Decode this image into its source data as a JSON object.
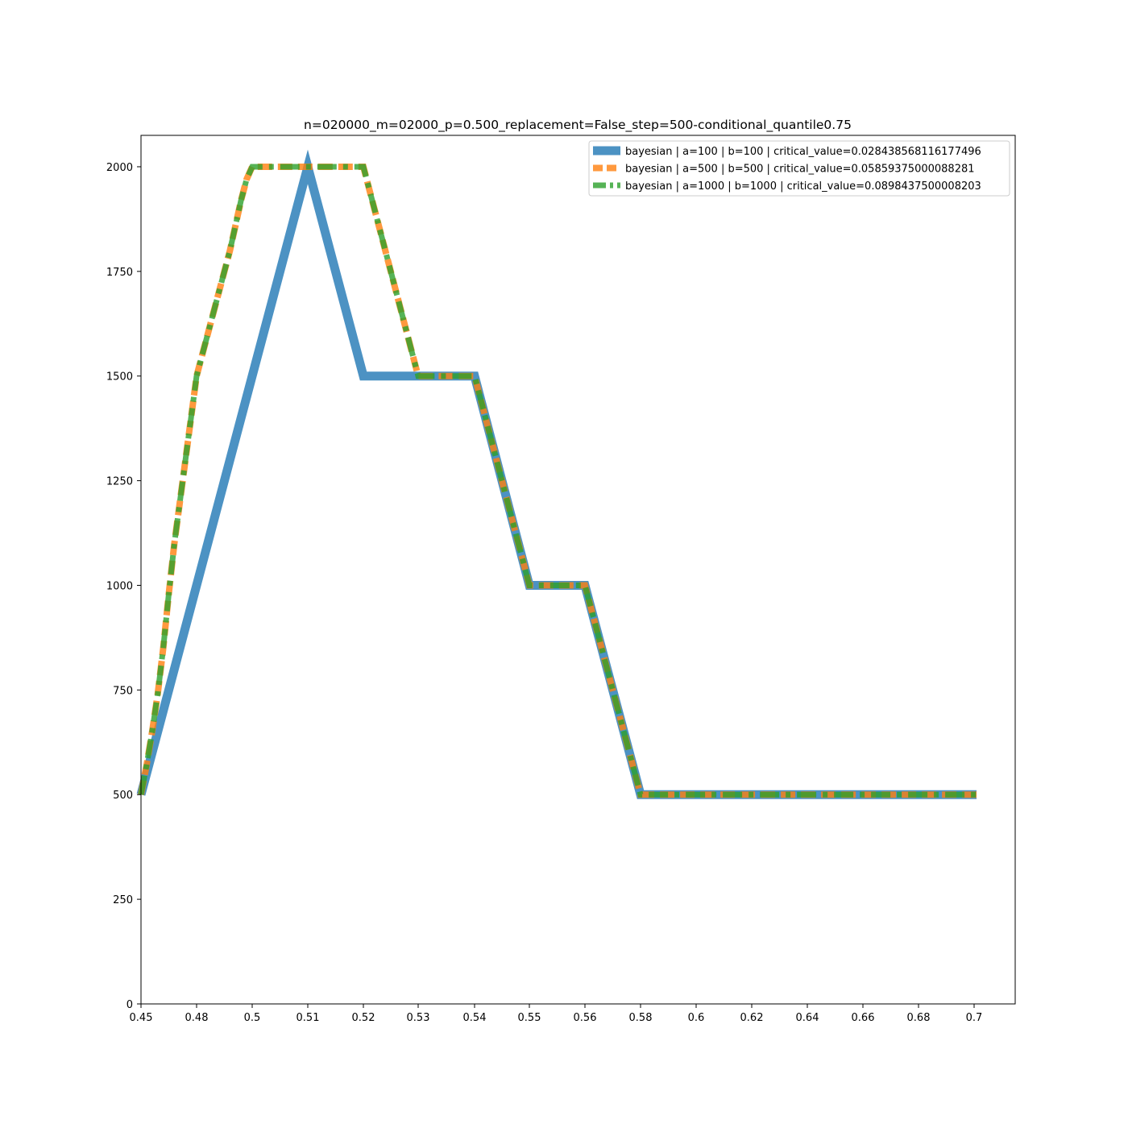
{
  "chart_data": {
    "type": "line",
    "title": "n=020000_m=02000_p=0.500_replacement=False_step=500-conditional_quantile0.75",
    "xlabel": "",
    "ylabel": "",
    "x_tick_labels": [
      "0.45",
      "0.48",
      "0.5",
      "0.51",
      "0.52",
      "0.53",
      "0.54",
      "0.55",
      "0.56",
      "0.58",
      "0.6",
      "0.62",
      "0.64",
      "0.66",
      "0.68",
      "0.7"
    ],
    "y_ticks": [
      0,
      250,
      500,
      750,
      1000,
      1250,
      1500,
      1750,
      2000
    ],
    "ylim": [
      0,
      2075
    ],
    "grid": false,
    "legend_position": "top-right",
    "series": [
      {
        "name": "bayesian | a=100 | b=100 | critical_value=0.028438568116177496",
        "color": "#1f77b4",
        "style": "solid",
        "x": [
          0.45,
          0.51,
          0.52,
          0.54,
          0.55,
          0.56,
          0.58,
          0.7025
        ],
        "y": [
          500,
          2000,
          1500,
          1500,
          1000,
          1000,
          500,
          500
        ]
      },
      {
        "name": "bayesian | a=500 | b=500 | critical_value=0.05859375000088281",
        "color": "#ff7f0e",
        "style": "dashed",
        "x": [
          0.45,
          0.4525,
          0.455,
          0.4575,
          0.46,
          0.4625,
          0.465,
          0.4675,
          0.47,
          0.4725,
          0.475,
          0.4775,
          0.48,
          0.4825,
          0.485,
          0.4875,
          0.49,
          0.4925,
          0.495,
          0.4975,
          0.5,
          0.52,
          0.53,
          0.54,
          0.55,
          0.56,
          0.58,
          0.7025
        ],
        "y": [
          500,
          570,
          650,
          740,
          850,
          980,
          1100,
          1200,
          1300,
          1400,
          1500,
          1550,
          1600,
          1650,
          1700,
          1750,
          1800,
          1860,
          1920,
          1970,
          2000,
          2000,
          1500,
          1500,
          1000,
          1000,
          500,
          500
        ]
      },
      {
        "name": "bayesian | a=1000 | b=1000 | critical_value=0.0898437500008203",
        "color": "#2ca02c",
        "style": "dashdot",
        "x": [
          0.45,
          0.4525,
          0.455,
          0.4575,
          0.46,
          0.4625,
          0.465,
          0.4675,
          0.47,
          0.4725,
          0.475,
          0.4775,
          0.48,
          0.4825,
          0.485,
          0.4875,
          0.49,
          0.4925,
          0.495,
          0.4975,
          0.5,
          0.52,
          0.53,
          0.54,
          0.55,
          0.56,
          0.58,
          0.7025
        ],
        "y": [
          500,
          570,
          650,
          740,
          850,
          980,
          1100,
          1200,
          1300,
          1400,
          1500,
          1550,
          1600,
          1650,
          1700,
          1750,
          1800,
          1860,
          1920,
          1970,
          2000,
          2000,
          1500,
          1500,
          1000,
          1000,
          500,
          500
        ]
      }
    ]
  }
}
